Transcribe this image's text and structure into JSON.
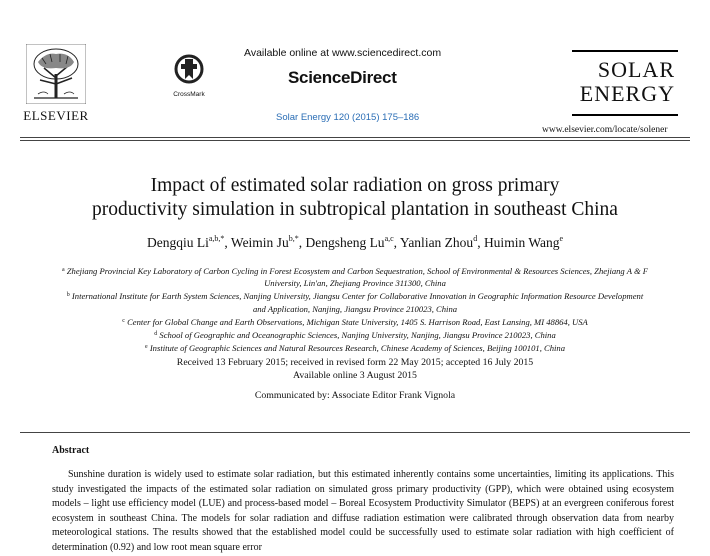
{
  "header": {
    "publisher": "ELSEVIER",
    "crossmark_label": "CrossMark",
    "available_online": "Available online at www.sciencedirect.com",
    "sciencedirect": "ScienceDirect",
    "citation": "Solar Energy 120 (2015) 175–186",
    "journal_line1": "SOLAR",
    "journal_line2": "ENERGY",
    "homepage": "www.elsevier.com/locate/solener"
  },
  "article": {
    "title_line1": "Impact of estimated solar radiation on gross primary",
    "title_line2": "productivity simulation in subtropical plantation in southeast China",
    "authors": [
      {
        "name": "Dengqiu Li",
        "sup": "a,b,*"
      },
      {
        "name": "Weimin Ju",
        "sup": "b,*"
      },
      {
        "name": "Dengsheng Lu",
        "sup": "a,c"
      },
      {
        "name": "Yanlian Zhou",
        "sup": "d"
      },
      {
        "name": "Huimin Wang",
        "sup": "e"
      }
    ],
    "affiliations": [
      {
        "sup": "a",
        "text": "Zhejiang Provincial Key Laboratory of Carbon Cycling in Forest Ecosystem and Carbon Sequestration, School of Environmental & Resources Sciences, Zhejiang A & F University, Lin'an, Zhejiang Province 311300, China"
      },
      {
        "sup": "b",
        "text": "International Institute for Earth System Sciences, Nanjing University, Jiangsu Center for Collaborative Innovation in Geographic Information Resource Development and Application, Nanjing, Jiangsu Province 210023, China"
      },
      {
        "sup": "c",
        "text": "Center for Global Change and Earth Observations, Michigan State University, 1405 S. Harrison Road, East Lansing, MI 48864, USA"
      },
      {
        "sup": "d",
        "text": "School of Geographic and Oceanographic Sciences, Nanjing University, Nanjing, Jiangsu Province 210023, China"
      },
      {
        "sup": "e",
        "text": "Institute of Geographic Sciences and Natural Resources Research, Chinese Academy of Sciences, Beijing 100101, China"
      }
    ],
    "received": "Received 13 February 2015; received in revised form 22 May 2015; accepted 16 July 2015",
    "available": "Available online 3 August 2015",
    "communicated": "Communicated by: Associate Editor Frank Vignola",
    "abstract_heading": "Abstract",
    "abstract_text": "Sunshine duration is widely used to estimate solar radiation, but this estimated inherently contains some uncertainties, limiting its applications. This study investigated the impacts of the estimated solar radiation on simulated gross primary productivity (GPP), which were obtained using ecosystem models – light use efficiency model (LUE) and process-based model – Boreal Ecosystem Productivity Simulator (BEPS) at an evergreen coniferous forest ecosystem in southeast China. The models for solar radiation and diffuse radiation estimation were calibrated through observation data from nearby meteorological stations. The results showed that the established model could be successfully used to estimate solar radiation with high coefficient of determination (0.92) and low root mean square error"
  }
}
